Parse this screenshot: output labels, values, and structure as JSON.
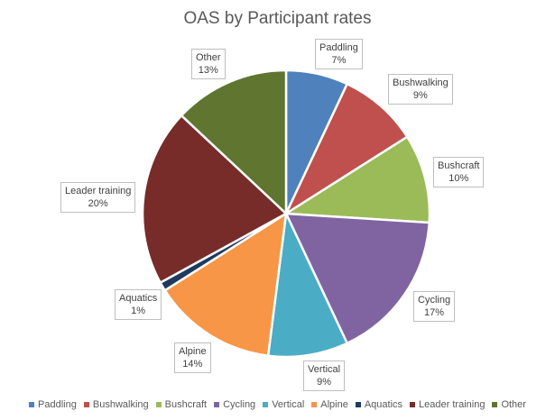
{
  "chart_data": {
    "type": "pie",
    "title": "OAS by Participant rates",
    "slices": [
      {
        "label": "Paddling",
        "value": 7,
        "value_label": "7%",
        "color": "#4f81bd"
      },
      {
        "label": "Bushwalking",
        "value": 9,
        "value_label": "9%",
        "color": "#c0504d"
      },
      {
        "label": "Bushcraft",
        "value": 10,
        "value_label": "10%",
        "color": "#9bbb59"
      },
      {
        "label": "Cycling",
        "value": 17,
        "value_label": "17%",
        "color": "#8064a2"
      },
      {
        "label": "Vertical",
        "value": 9,
        "value_label": "9%",
        "color": "#4bacc6"
      },
      {
        "label": "Alpine",
        "value": 14,
        "value_label": "14%",
        "color": "#f79646"
      },
      {
        "label": "Aquatics",
        "value": 1,
        "value_label": "1%",
        "color": "#1f3a5f"
      },
      {
        "label": "Leader training",
        "value": 20,
        "value_label": "20%",
        "color": "#772c2a"
      },
      {
        "label": "Other",
        "value": 13,
        "value_label": "13%",
        "color": "#5f7530"
      }
    ],
    "legend": "bottom"
  }
}
